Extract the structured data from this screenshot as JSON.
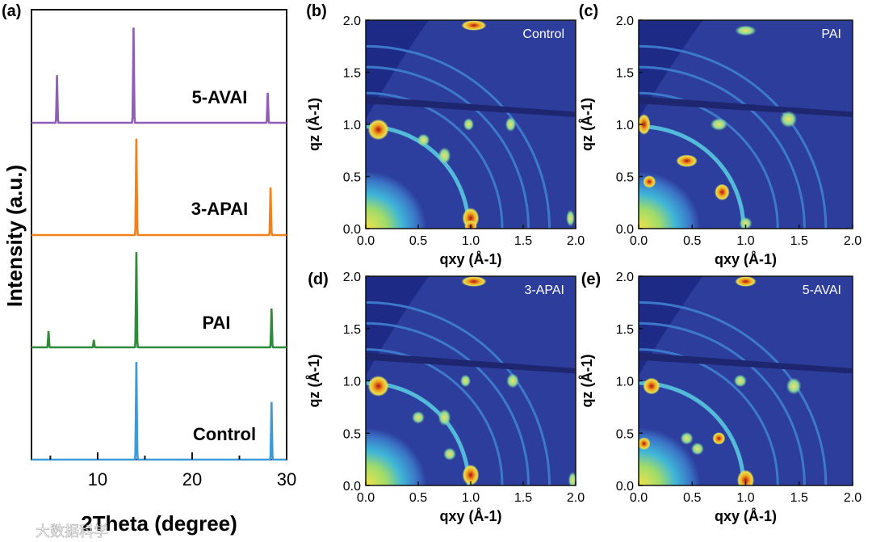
{
  "watermark": "大数据科学",
  "colors": {
    "axis": "#111111",
    "detector_bg": "#2d3f9e",
    "mask_band": "#1e2670"
  },
  "panels": [
    {
      "id": "a",
      "label": "(a)"
    },
    {
      "id": "b",
      "label": "(b)"
    },
    {
      "id": "c",
      "label": "(c)"
    },
    {
      "id": "d",
      "label": "(d)"
    },
    {
      "id": "e",
      "label": "(e)"
    }
  ],
  "chart_data": [
    {
      "panel": "(a)",
      "type": "line",
      "xlabel": "2Theta (degree)",
      "ylabel": "Intensity (a.u.)",
      "xlim": [
        3,
        30
      ],
      "xticks": [
        10,
        20,
        30
      ],
      "y_ticks_shown": false,
      "layout": "vertically offset stacked traces",
      "series": [
        {
          "name": "Control",
          "color": "#3b9ad9",
          "baseline": 0,
          "peaks": [
            {
              "x": 14.1,
              "h": 0.78
            },
            {
              "x": 28.4,
              "h": 0.46
            }
          ]
        },
        {
          "name": "PAI",
          "color": "#2e8b3a",
          "baseline": 1,
          "peaks": [
            {
              "x": 4.8,
              "h": 0.13
            },
            {
              "x": 9.6,
              "h": 0.06
            },
            {
              "x": 14.1,
              "h": 0.76
            },
            {
              "x": 28.4,
              "h": 0.31
            }
          ]
        },
        {
          "name": "3-APAI",
          "color": "#f2811c",
          "baseline": 2,
          "peaks": [
            {
              "x": 14.1,
              "h": 0.77
            },
            {
              "x": 28.3,
              "h": 0.38
            }
          ]
        },
        {
          "name": "5-AVAI",
          "color": "#8f5fb7",
          "baseline": 3,
          "peaks": [
            {
              "x": 5.7,
              "h": 0.38
            },
            {
              "x": 13.8,
              "h": 0.76
            },
            {
              "x": 28.0,
              "h": 0.24
            }
          ]
        }
      ]
    },
    {
      "panel": "(b)",
      "type": "heatmap",
      "title": "Control",
      "xlabel": "qxy (Å-1)",
      "ylabel": "qz (Å-1)",
      "xlim": [
        0,
        2.0
      ],
      "ylim": [
        0,
        2.0
      ],
      "xticks": [
        "0.0",
        "0.5",
        "1.0",
        "1.5",
        "2.0"
      ],
      "yticks": [
        "0.0",
        "0.5",
        "1.0",
        "1.5",
        "2.0"
      ]
    },
    {
      "panel": "(c)",
      "type": "heatmap",
      "title": "PAI",
      "xlabel": "qxy (Å-1)",
      "ylabel": "qz (Å-1)",
      "xlim": [
        0,
        2.0
      ],
      "ylim": [
        0,
        2.0
      ],
      "xticks": [
        "0.0",
        "0.5",
        "1.0",
        "1.5",
        "2.0"
      ],
      "yticks": [
        "0.0",
        "0.5",
        "1.0",
        "1.5",
        "2.0"
      ]
    },
    {
      "panel": "(d)",
      "type": "heatmap",
      "title": "3-APAI",
      "xlabel": "qxy (Å-1)",
      "ylabel": "qz (Å-1)",
      "xlim": [
        0,
        2.0
      ],
      "ylim": [
        0,
        2.0
      ],
      "xticks": [
        "0.0",
        "0.5",
        "1.0",
        "1.5",
        "2.0"
      ],
      "yticks": [
        "0.0",
        "0.5",
        "1.0",
        "1.5",
        "2.0"
      ]
    },
    {
      "panel": "(e)",
      "type": "heatmap",
      "title": "5-AVAI",
      "xlabel": "qxy (Å-1)",
      "ylabel": "qz (Å-1)",
      "xlim": [
        0,
        2.0
      ],
      "ylim": [
        0,
        2.0
      ],
      "xticks": [
        "0.0",
        "0.5",
        "1.0",
        "1.5",
        "2.0"
      ],
      "yticks": [
        "0.0",
        "0.5",
        "1.0",
        "1.5",
        "2.0"
      ]
    }
  ]
}
